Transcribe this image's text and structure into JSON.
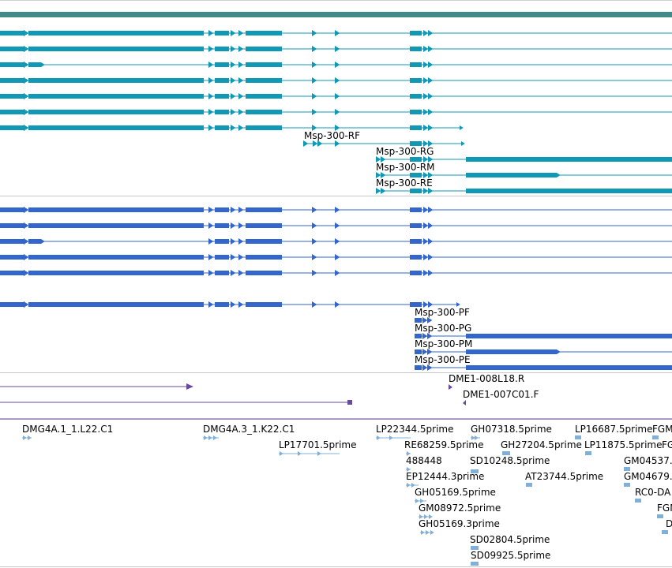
{
  "colors": {
    "background": "#ffffff",
    "header_bar": "#3e8b8a",
    "track_separator": "#c8c8c8",
    "transcript_teal": "#1098b4",
    "protein_blue": "#3366cc",
    "clone_purple": "#6a4aa0",
    "est_lightblue": "#80b0d8"
  },
  "transcripts_track": {
    "labels": [
      "Msp-300-RF",
      "Msp-300-RG",
      "Msp-300-RM",
      "Msp-300-RE"
    ]
  },
  "proteins_track": {
    "labels": [
      "Msp-300-PF",
      "Msp-300-PG",
      "Msp-300-PM",
      "Msp-300-PE"
    ]
  },
  "clones_track": {
    "labels": [
      "DME1-008L18.R",
      "DME1-007C01.F"
    ]
  },
  "est_track": {
    "labels": [
      "DMG4A.1_1.L22.C1",
      "DMG4A.3_1.K22.C1",
      "LP17701.5prime",
      "LP22344.5prime",
      "RE68259.5prime",
      "488448",
      "EP12444.3prime",
      "GH05169.5prime",
      "GM08972.5prime",
      "GH05169.3prime",
      "GH07318.5prime",
      "GH27204.5prime",
      "SD10248.5prime",
      "AT23744.5prime",
      "SD02804.5prime",
      "SD09925.5prime",
      "LP16687.5prime",
      "LP11875.5prime",
      "FGM",
      "FG",
      "GM04537.",
      "GM04679.",
      "RC0-DA",
      "FGM",
      "D"
    ]
  }
}
